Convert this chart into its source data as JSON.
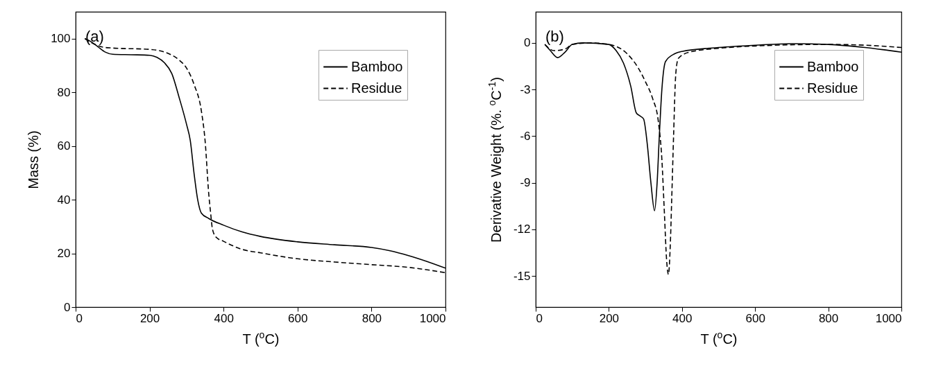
{
  "chart_data": [
    {
      "type": "line",
      "xlabel": "T ($^{o}$C)",
      "ylabel": "Mass (%)",
      "annotations": [
        "(a)"
      ],
      "xlim": [
        0,
        1000
      ],
      "xticks": [
        0,
        200,
        400,
        600,
        800,
        1000
      ],
      "ylim": [
        0,
        110
      ],
      "yticks": [
        0,
        20,
        40,
        60,
        80,
        100
      ],
      "grid": false,
      "legend": "top right",
      "marker": "none",
      "series": [
        {
          "name": "Bamboo",
          "color": "#000000",
          "line_style": "solid",
          "x": [
            25,
            40,
            60,
            80,
            100,
            150,
            200,
            220,
            240,
            260,
            280,
            300,
            310,
            320,
            330,
            340,
            360,
            400,
            450,
            500,
            600,
            700,
            800,
            850,
            900,
            950,
            1000
          ],
          "values": [
            100,
            99,
            97,
            95,
            94.2,
            94,
            93.8,
            93,
            91,
            87,
            78,
            68,
            62,
            50,
            40,
            35,
            33,
            30.5,
            28,
            26.3,
            24.3,
            23.2,
            22.2,
            21,
            19.2,
            17,
            14.5
          ]
        },
        {
          "name": "Residue",
          "color": "#000000",
          "line_style": "dashed",
          "x": [
            25,
            50,
            75,
            100,
            200,
            250,
            280,
            300,
            320,
            340,
            350,
            360,
            365,
            370,
            380,
            400,
            450,
            500,
            600,
            700,
            800,
            900,
            1000
          ],
          "values": [
            100,
            98,
            96.8,
            96.5,
            96,
            94.5,
            92,
            89,
            83,
            73,
            62,
            42,
            35,
            29,
            26,
            24.5,
            21.5,
            20.2,
            18,
            16.8,
            15.8,
            14.8,
            12.8
          ]
        }
      ]
    },
    {
      "type": "line",
      "xlabel": "T ($^{o}$C)",
      "ylabel": "Derivative Weight (%. $^{o}$C$^{-1}$)",
      "annotations": [
        "(b)"
      ],
      "xlim": [
        0,
        1000
      ],
      "xticks": [
        0,
        200,
        400,
        600,
        800,
        1000
      ],
      "ylim": [
        -17,
        2
      ],
      "yticks": [
        0,
        -3,
        -6,
        -9,
        -12,
        -15
      ],
      "grid": false,
      "legend": "top right",
      "marker": "none",
      "series": [
        {
          "name": "Bamboo",
          "color": "#000000",
          "line_style": "solid",
          "x": [
            25,
            40,
            60,
            80,
            100,
            130,
            200,
            220,
            240,
            260,
            275,
            285,
            295,
            305,
            315,
            325,
            332,
            338,
            345,
            355,
            380,
            400,
            500,
            600,
            700,
            800,
            900,
            1000
          ],
          "values": [
            -0.1,
            -0.5,
            -0.95,
            -0.6,
            -0.1,
            0,
            -0.1,
            -0.5,
            -1.3,
            -2.8,
            -4.5,
            -4.7,
            -4.9,
            -6.5,
            -9,
            -10.8,
            -9,
            -6,
            -3,
            -1.2,
            -0.7,
            -0.55,
            -0.3,
            -0.15,
            -0.05,
            -0.1,
            -0.3,
            -0.6
          ]
        },
        {
          "name": "Residue",
          "color": "#000000",
          "line_style": "dashed",
          "x": [
            25,
            50,
            80,
            100,
            150,
            200,
            250,
            280,
            300,
            320,
            335,
            345,
            352,
            358,
            363,
            368,
            372,
            377,
            383,
            390,
            420,
            500,
            600,
            800,
            900,
            1000
          ],
          "values": [
            -0.1,
            -0.5,
            -0.4,
            -0.1,
            0,
            -0.1,
            -0.7,
            -1.6,
            -2.5,
            -3.6,
            -5,
            -7.5,
            -11,
            -14,
            -14.9,
            -13,
            -10,
            -6,
            -2,
            -1,
            -0.6,
            -0.35,
            -0.2,
            -0.1,
            -0.15,
            -0.3
          ]
        }
      ]
    }
  ]
}
